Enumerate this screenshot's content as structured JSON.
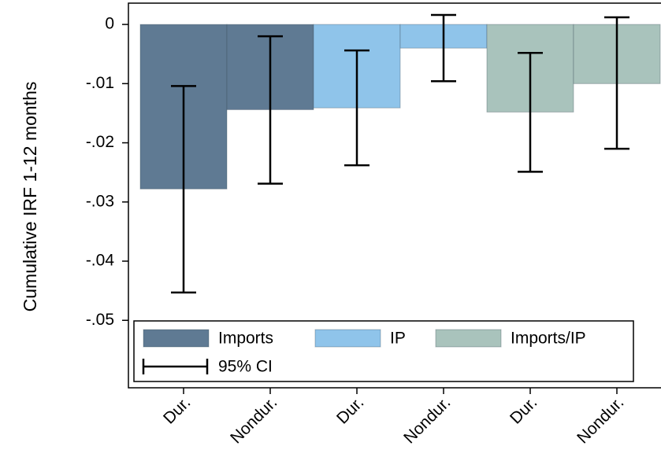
{
  "chart_data": {
    "type": "bar",
    "y_label": "Cumulative IRF 1-12 months",
    "categories": [
      "Dur.",
      "Nondur.",
      "Dur.",
      "Nondur.",
      "Dur.",
      "Nondur."
    ],
    "series": [
      {
        "name": "Imports",
        "color": "#5f7a93",
        "values": [
          -0.0278,
          -0.0144,
          null,
          null,
          null,
          null
        ],
        "ci_upper": [
          -0.0104,
          -0.002,
          null,
          null,
          null,
          null
        ],
        "ci_lower": [
          -0.0453,
          -0.0269,
          null,
          null,
          null,
          null
        ]
      },
      {
        "name": "IP",
        "color": "#8fc4ea",
        "values": [
          null,
          null,
          -0.0141,
          -0.004,
          null,
          null
        ],
        "ci_upper": [
          null,
          null,
          -0.0044,
          0.0016,
          null,
          null
        ],
        "ci_lower": [
          null,
          null,
          -0.0238,
          -0.0096,
          null,
          null
        ]
      },
      {
        "name": "Imports/IP",
        "color": "#a9c3bc",
        "values": [
          null,
          null,
          null,
          null,
          -0.0148,
          -0.01
        ],
        "ci_upper": [
          null,
          null,
          null,
          null,
          -0.0048,
          0.0012
        ],
        "ci_lower": [
          null,
          null,
          null,
          null,
          -0.0249,
          -0.021
        ]
      }
    ],
    "ci_label": "95% CI",
    "ylim": [
      -0.0614,
      0.0036
    ],
    "yticks": [
      0,
      {
        "value": -0.01,
        "label": "-.01"
      },
      {
        "value": -0.02,
        "label": "-.02"
      },
      {
        "value": -0.03,
        "label": "-.03"
      },
      {
        "value": -0.04,
        "label": "-.04"
      },
      {
        "value": -0.05,
        "label": "-.05"
      }
    ],
    "legend": "bottom-left"
  }
}
